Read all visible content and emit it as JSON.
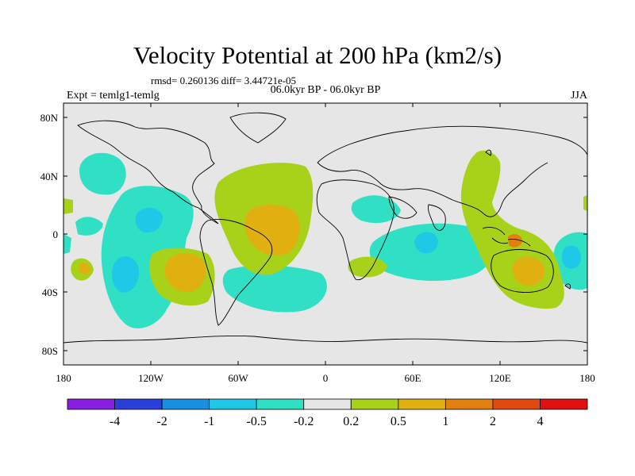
{
  "title": "Velocity Potential at 200 hPa (km2/s)",
  "stats_line": "rmsd= 0.260136 diff= 3.44721e-05",
  "experiment_label": "Expt = temlg1-temlg",
  "period_label": "06.0kyr BP - 06.0kyr BP",
  "season_label": "JJA",
  "axes": {
    "lat_ticks": [
      "80N",
      "40N",
      "0",
      "40S",
      "80S"
    ],
    "lon_ticks": [
      "180",
      "120W",
      "60W",
      "0",
      "60E",
      "120E",
      "180"
    ]
  },
  "colorbar": {
    "labels": [
      "-4",
      "-2",
      "-1",
      "-0.5",
      "-0.2",
      "0.2",
      "0.5",
      "1",
      "2",
      "4"
    ],
    "colors": [
      "#8a1ee0",
      "#2a3fd8",
      "#1a8fe0",
      "#1ec8e6",
      "#2fe0c4",
      "#e6e6e6",
      "#a8d21a",
      "#e0b010",
      "#e08010",
      "#e04a10",
      "#e01010"
    ]
  },
  "colors": {
    "background_field": "#e6e6e6",
    "coastline": "#000000"
  }
}
